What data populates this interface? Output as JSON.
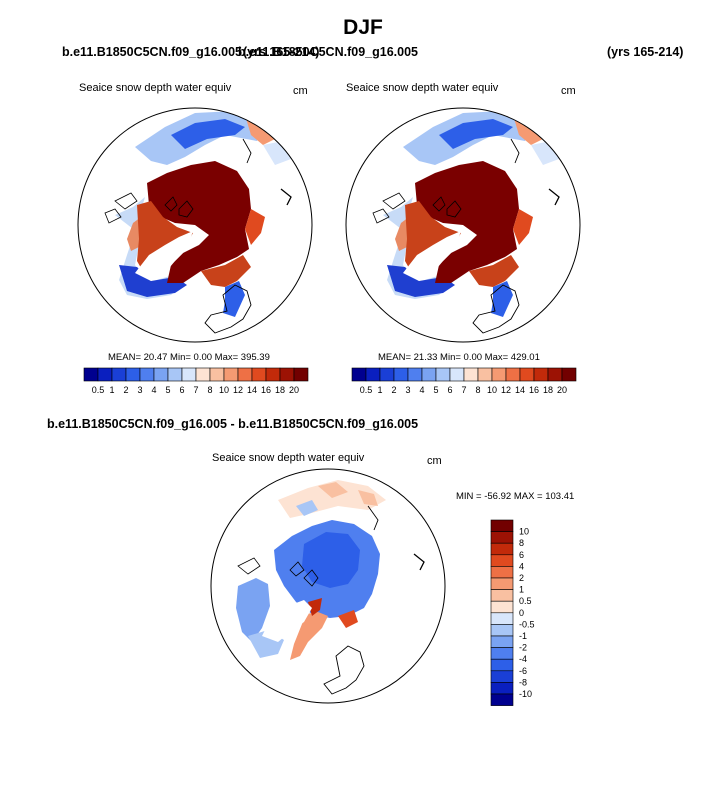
{
  "figure": {
    "season": "DJF",
    "header_left_case": "b.e11.B1850C5CN.f09_g16.005",
    "header_left_years": "(yrs 165-214)",
    "header_right_case": "b.e11.B1850C5CN.f09_g16.005",
    "header_right_years": "(yrs 165-214)",
    "diff_title": "b.e11.B1850C5CN.f09_g16.005 - b.e11.B1850C5CN.f09_g16.005"
  },
  "panels": {
    "left": {
      "variable": "Seaice snow depth water equiv",
      "units": "cm",
      "stats": "MEAN=  20.47  Min=   0.00  Max= 395.39"
    },
    "right": {
      "variable": "Seaice snow depth water equiv",
      "units": "cm",
      "stats": "MEAN=  21.33  Min=   0.00  Max= 429.01"
    },
    "diff": {
      "variable": "Seaice snow depth water equiv",
      "units": "cm",
      "stats": "MIN = -56.92 MAX = 103.41"
    }
  },
  "colorbars": {
    "horizontal": {
      "labels": [
        "0.5",
        "1",
        "2",
        "3",
        "4",
        "5",
        "6",
        "7",
        "8",
        "10",
        "12",
        "14",
        "16",
        "18",
        "20"
      ],
      "colors": [
        "#00008f",
        "#0a1fbf",
        "#1a3fd6",
        "#2d5fe8",
        "#4f7fef",
        "#7aa3f2",
        "#a8c6f6",
        "#d8e6fb",
        "#fde3d3",
        "#f9c0a1",
        "#f59a72",
        "#ee7045",
        "#e04a1f",
        "#c22a0a",
        "#9c1204",
        "#720000"
      ]
    },
    "vertical": {
      "labels": [
        "10",
        "8",
        "6",
        "4",
        "2",
        "1",
        "0.5",
        "0",
        "-0.5",
        "-1",
        "-2",
        "-4",
        "-6",
        "-8",
        "-10"
      ],
      "colors": [
        "#720000",
        "#9c1204",
        "#c22a0a",
        "#e04a1f",
        "#ee7045",
        "#f59a72",
        "#f9c0a1",
        "#fde3d3",
        "#d8e6fb",
        "#a8c6f6",
        "#7aa3f2",
        "#4f7fef",
        "#2d5fe8",
        "#1a3fd6",
        "#0a1fbf",
        "#00008f"
      ]
    }
  }
}
